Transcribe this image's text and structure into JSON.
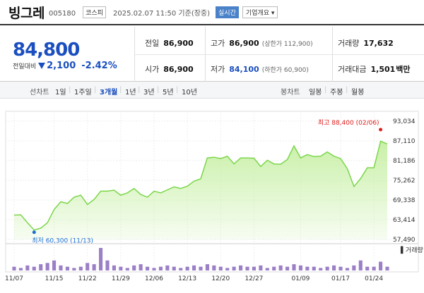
{
  "header": {
    "name": "빙그레",
    "code": "005180",
    "market": "코스피",
    "datetime": "2025.02.07 11:50 기준(장중)",
    "realtime_label": "실시간",
    "company_info_label": "기업개요 ▾"
  },
  "price": {
    "current": "84,800",
    "change_label": "전일대비",
    "change_abs": "2,100",
    "change_pct": "-2.42%",
    "direction": "down",
    "accent": "#1b4fbf"
  },
  "stats": {
    "prev_close_label": "전일",
    "prev_close": "86,900",
    "high_label": "고가",
    "high": "86,900",
    "upper_limit": "(상한가 112,900)",
    "volume_label": "거래량",
    "volume": "17,632",
    "open_label": "시가",
    "open": "86,900",
    "low_label": "저가",
    "low": "84,100",
    "lower_limit": "(하한가 60,900)",
    "trade_value_label": "거래대금",
    "trade_value": "1,501",
    "trade_value_unit": "백만"
  },
  "toolbar": {
    "line_chart_label": "선차트",
    "periods": [
      "1일",
      "1주일",
      "3개월",
      "1년",
      "3년",
      "5년",
      "10년"
    ],
    "active_period": "3개월",
    "candle_chart_label": "봉차트",
    "candle_periods": [
      "일봉",
      "주봉",
      "월봉"
    ]
  },
  "chart_data": {
    "type": "area",
    "y_ticks": [
      "93,034",
      "87,110",
      "81,186",
      "75,262",
      "69,338",
      "63,414",
      "57,490"
    ],
    "ylim": [
      57490,
      93034
    ],
    "x_tick_labels": [
      "11/07",
      "11/15",
      "11/22",
      "11/29",
      "12/06",
      "12/13",
      "12/20",
      "12/27",
      "01/09",
      "01/17",
      "01/24"
    ],
    "x_tick_index": [
      0,
      6,
      11,
      16,
      21,
      26,
      31,
      36,
      43,
      49,
      54
    ],
    "values": [
      64800,
      64900,
      62500,
      60300,
      60900,
      62500,
      66500,
      68800,
      68300,
      70200,
      70800,
      68000,
      69500,
      72000,
      72000,
      72300,
      70800,
      71500,
      72800,
      71000,
      70200,
      72000,
      71500,
      72400,
      73300,
      72800,
      73500,
      75000,
      75700,
      82000,
      82200,
      81800,
      82500,
      80200,
      82000,
      82000,
      81900,
      79400,
      81300,
      80200,
      80100,
      81500,
      85600,
      82000,
      83000,
      82400,
      82500,
      83800,
      82500,
      81800,
      78800,
      73400,
      75800,
      79000,
      79000,
      87000,
      86200
    ],
    "volumes": [
      3,
      2,
      4,
      3,
      5,
      6,
      8,
      4,
      3,
      2,
      3,
      6,
      5,
      18,
      8,
      4,
      3,
      2,
      4,
      5,
      3,
      2,
      3,
      4,
      3,
      2,
      3,
      4,
      3,
      5,
      4,
      3,
      2,
      3,
      4,
      3,
      3,
      4,
      2,
      3,
      4,
      3,
      5,
      4,
      3,
      3,
      2,
      3,
      4,
      3,
      2,
      4,
      8,
      3,
      3,
      7,
      3
    ],
    "high_annotation": "최고 88,400 (02/06)",
    "low_annotation": "최저 60,300 (11/13)",
    "high_index": 55,
    "low_index": 3,
    "volume_legend": "거래량",
    "line_color": "#7bd64a",
    "fill_color": "#c9f0a8",
    "volume_color": "#9b7fc7",
    "high_marker_color": "#e02020",
    "low_marker_color": "#1b6fd1"
  }
}
